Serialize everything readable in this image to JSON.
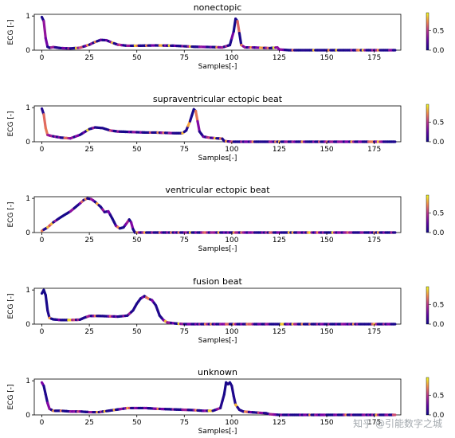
{
  "watermark": "知乎 @引能数字之城",
  "chart_data": [
    {
      "type": "line",
      "title": "nonectopic",
      "xlabel": "Samples[-]",
      "ylabel": "ECG [-]",
      "xlim": [
        -4,
        189
      ],
      "ylim": [
        0,
        1.05
      ],
      "xticks": [
        0,
        25,
        50,
        75,
        100,
        125,
        150,
        175
      ],
      "yticks": [
        0,
        1
      ],
      "colorbar_ticks": [
        0.0,
        0.5
      ],
      "x": [
        0,
        1,
        2,
        3,
        4,
        6,
        10,
        15,
        20,
        25,
        28,
        31,
        34,
        37,
        40,
        45,
        50,
        60,
        70,
        80,
        90,
        95,
        99,
        101,
        102,
        103,
        104,
        105,
        107,
        110,
        115,
        120,
        124,
        125,
        130,
        150,
        170,
        186
      ],
      "y": [
        0.97,
        0.85,
        0.35,
        0.1,
        0.07,
        0.09,
        0.06,
        0.05,
        0.07,
        0.16,
        0.24,
        0.3,
        0.29,
        0.22,
        0.16,
        0.13,
        0.13,
        0.14,
        0.13,
        0.1,
        0.09,
        0.08,
        0.15,
        0.55,
        0.92,
        0.85,
        0.5,
        0.15,
        0.08,
        0.08,
        0.07,
        0.06,
        0.08,
        0.02,
        0.0,
        0.0,
        0.0,
        0.0
      ]
    },
    {
      "type": "line",
      "title": "supraventricular ectopic beat",
      "xlabel": "Samples[-]",
      "ylabel": "ECG [-]",
      "xlim": [
        -4,
        189
      ],
      "ylim": [
        0,
        1.05
      ],
      "xticks": [
        0,
        25,
        50,
        75,
        100,
        125,
        150,
        175
      ],
      "yticks": [
        0,
        1
      ],
      "colorbar_ticks": [
        0.0,
        0.5
      ],
      "x": [
        0,
        1,
        2,
        3,
        5,
        10,
        15,
        20,
        25,
        28,
        32,
        36,
        40,
        45,
        50,
        55,
        60,
        65,
        70,
        74,
        76,
        78,
        80,
        81,
        82,
        83,
        85,
        88,
        92,
        95,
        96,
        100,
        150,
        186
      ],
      "y": [
        0.97,
        0.8,
        0.4,
        0.2,
        0.17,
        0.12,
        0.1,
        0.2,
        0.37,
        0.42,
        0.4,
        0.33,
        0.3,
        0.29,
        0.28,
        0.27,
        0.27,
        0.26,
        0.25,
        0.25,
        0.33,
        0.6,
        0.95,
        0.9,
        0.6,
        0.3,
        0.15,
        0.12,
        0.1,
        0.09,
        0.02,
        0.0,
        0.0,
        0.0
      ]
    },
    {
      "type": "line",
      "title": "ventricular ectopic beat",
      "xlabel": "Samples[-]",
      "ylabel": "ECG [-]",
      "xlim": [
        -4,
        189
      ],
      "ylim": [
        0,
        1.05
      ],
      "xticks": [
        0,
        25,
        50,
        75,
        100,
        125,
        150,
        175
      ],
      "yticks": [
        0,
        1
      ],
      "colorbar_ticks": [
        0.0,
        0.5
      ],
      "x": [
        0,
        3,
        6,
        10,
        15,
        20,
        22,
        24,
        26,
        28,
        31,
        33,
        35,
        37,
        39,
        41,
        43,
        45,
        46,
        47,
        48,
        49,
        60,
        100,
        150,
        186
      ],
      "y": [
        0.05,
        0.15,
        0.3,
        0.45,
        0.62,
        0.85,
        0.95,
        1.0,
        0.98,
        0.9,
        0.75,
        0.6,
        0.62,
        0.42,
        0.2,
        0.12,
        0.15,
        0.3,
        0.38,
        0.3,
        0.1,
        0.0,
        0.0,
        0.0,
        0.0,
        0.0
      ]
    },
    {
      "type": "line",
      "title": "fusion beat",
      "xlabel": "Samples[-]",
      "ylabel": "ECG [-]",
      "xlim": [
        -4,
        189
      ],
      "ylim": [
        0,
        1.05
      ],
      "xticks": [
        0,
        25,
        50,
        75,
        100,
        125,
        150,
        175
      ],
      "yticks": [
        0,
        1
      ],
      "colorbar_ticks": [
        0.0,
        0.5
      ],
      "x": [
        0,
        1,
        2,
        3,
        4,
        6,
        10,
        15,
        20,
        22,
        25,
        30,
        35,
        40,
        45,
        48,
        50,
        52,
        54,
        56,
        58,
        60,
        62,
        64,
        66,
        70,
        75,
        100,
        150,
        186
      ],
      "y": [
        0.9,
        1.0,
        0.85,
        0.4,
        0.18,
        0.14,
        0.12,
        0.12,
        0.13,
        0.18,
        0.24,
        0.24,
        0.23,
        0.22,
        0.25,
        0.4,
        0.6,
        0.75,
        0.82,
        0.75,
        0.7,
        0.55,
        0.25,
        0.12,
        0.05,
        0.02,
        0.0,
        0.0,
        0.0,
        0.0
      ]
    },
    {
      "type": "line",
      "title": "unknown",
      "xlabel": "Samples[-]",
      "ylabel": "ECG [-]",
      "xlim": [
        -4,
        189
      ],
      "ylim": [
        0,
        1.05
      ],
      "xticks": [
        0,
        25,
        50,
        75,
        100,
        125,
        150,
        175
      ],
      "yticks": [
        0,
        1
      ],
      "colorbar_ticks": [
        0.0,
        0.5
      ],
      "x": [
        0,
        1,
        2,
        3,
        4,
        6,
        10,
        15,
        20,
        25,
        30,
        35,
        40,
        45,
        50,
        55,
        60,
        65,
        70,
        75,
        80,
        85,
        90,
        94,
        96,
        97,
        98,
        99,
        100,
        101,
        102,
        104,
        106,
        110,
        115,
        118,
        120,
        125,
        150,
        186
      ],
      "y": [
        0.95,
        0.85,
        0.6,
        0.35,
        0.18,
        0.12,
        0.12,
        0.1,
        0.1,
        0.08,
        0.08,
        0.12,
        0.16,
        0.2,
        0.2,
        0.2,
        0.18,
        0.17,
        0.16,
        0.15,
        0.14,
        0.12,
        0.12,
        0.2,
        0.6,
        0.95,
        0.9,
        0.95,
        0.85,
        0.55,
        0.3,
        0.15,
        0.1,
        0.08,
        0.06,
        0.05,
        0.02,
        0.0,
        0.0,
        0.0
      ]
    }
  ]
}
